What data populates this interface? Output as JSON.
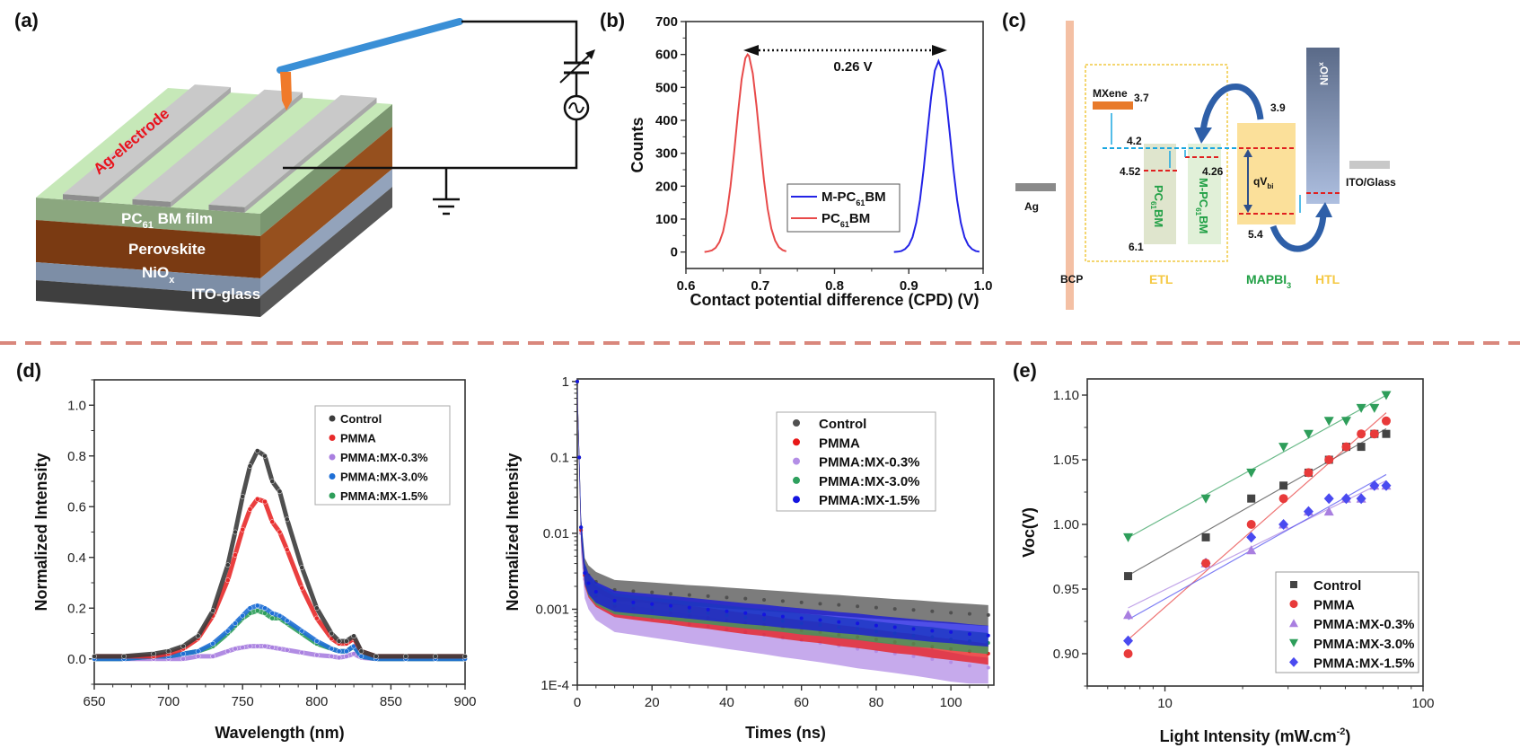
{
  "figure": {
    "panel_labels": {
      "a": "(a)",
      "b": "(b)",
      "c": "(c)",
      "d": "(d)",
      "e": "(e)"
    },
    "separator_color": "#d9877c"
  },
  "panel_a": {
    "electrode_label": "Ag-electrode",
    "layers": [
      {
        "label": "PC",
        "sub": "61",
        "rest": " BM film",
        "top_color": "#c6e8b8",
        "front_color": "#8ba77f",
        "side_color": "#7a9670"
      },
      {
        "label": "Perovskite",
        "sub": "",
        "rest": "",
        "front_color": "#7a3a12",
        "side_color": "#96501e"
      },
      {
        "label": "NiO",
        "sub": "x",
        "rest": "",
        "front_color": "#7d8ea6",
        "side_color": "#93a3bb"
      },
      {
        "label": "ITO-glass",
        "sub": "",
        "rest": "",
        "front_color": "#3f3f3f",
        "side_color": "#575757"
      }
    ],
    "electrode_color": "#c9c9c9",
    "cantilever_color": "#3a8fd6",
    "tip_color": "#f07a2a"
  },
  "panel_c": {
    "mxene": {
      "label": "MXene",
      "level": "3.7"
    },
    "levels": {
      "fermi": "4.2",
      "pcbm_lumo": "4.52",
      "mpcbm_lumo": "4.26",
      "pcbm_homo": "6.1",
      "mapbi_lumo": "3.9",
      "mapbi_homo": "5.4"
    },
    "pcbm": {
      "a": "PC",
      "sub": "61",
      "b": "BM"
    },
    "mpcbm": {
      "a": "M-PC",
      "sub": "61",
      "b": "BM"
    },
    "qvbi": {
      "a": "qV",
      "sub": "bi"
    },
    "nio": {
      "a": "NiO",
      "sub": "x"
    },
    "ag": "Ag",
    "bcp": "BCP",
    "ito": "ITO/Glass",
    "etl": "ETL",
    "mapbi": {
      "a": "MAPBI",
      "sub": "3"
    },
    "htl": "HTL",
    "colors": {
      "etl": "#f5c842",
      "mapbi_text": "#22a046",
      "htl": "#f5c842",
      "red_dash": "#e02020",
      "cyan": "#1aa7e0",
      "arrow": "#2e5fa8"
    }
  },
  "chart_data": [
    {
      "id": "cpd",
      "type": "line",
      "xlabel": "Contact potential difference (CPD) (V)",
      "ylabel": "Counts",
      "xlim": [
        0.6,
        1.0
      ],
      "ylim": [
        -50,
        700
      ],
      "xticks": [
        "0.6",
        "0.7",
        "0.8",
        "0.9",
        "1.0"
      ],
      "yticks": [
        "0",
        "100",
        "200",
        "300",
        "400",
        "500",
        "600",
        "700"
      ],
      "annotation": "0.26 V",
      "legend_position": "lower-right",
      "series": [
        {
          "name": "M-PC",
          "name_sub": "61",
          "name_rest": "BM",
          "color": "#2323e6",
          "x": [
            0.88,
            0.885,
            0.89,
            0.895,
            0.9,
            0.905,
            0.91,
            0.915,
            0.92,
            0.925,
            0.93,
            0.935,
            0.94,
            0.945,
            0.95,
            0.955,
            0.96,
            0.965,
            0.97,
            0.975,
            0.98,
            0.985,
            0.99,
            0.995
          ],
          "y": [
            0,
            1,
            3,
            9,
            21,
            45,
            89,
            158,
            252,
            363,
            470,
            551,
            580,
            551,
            470,
            363,
            252,
            158,
            89,
            45,
            21,
            9,
            3,
            1
          ]
        },
        {
          "name": "PC",
          "name_sub": "61",
          "name_rest": "BM",
          "color": "#e84a4a",
          "x": [
            0.625,
            0.63,
            0.635,
            0.64,
            0.645,
            0.65,
            0.655,
            0.66,
            0.665,
            0.67,
            0.675,
            0.68,
            0.683,
            0.685,
            0.69,
            0.695,
            0.7,
            0.705,
            0.71,
            0.715,
            0.72,
            0.725,
            0.73,
            0.735
          ],
          "y": [
            0,
            2,
            5,
            13,
            30,
            62,
            117,
            200,
            305,
            421,
            525,
            589,
            600,
            595,
            542,
            444,
            329,
            219,
            131,
            71,
            35,
            15,
            6,
            2
          ]
        }
      ]
    },
    {
      "id": "pl",
      "type": "scatter",
      "xlabel": "Wavelength (nm)",
      "ylabel": "Normalized Intensity",
      "xlim": [
        650,
        900
      ],
      "ylim": [
        -0.1,
        1.1
      ],
      "xticks": [
        "650",
        "700",
        "750",
        "800",
        "850",
        "900"
      ],
      "yticks": [
        "0.0",
        "0.2",
        "0.4",
        "0.6",
        "0.8",
        "1.0"
      ],
      "legend_position": "top-right",
      "x": [
        650,
        670,
        690,
        700,
        710,
        720,
        730,
        740,
        745,
        750,
        755,
        760,
        765,
        770,
        775,
        780,
        790,
        800,
        810,
        815,
        820,
        825,
        830,
        840,
        860,
        880,
        900
      ],
      "series": [
        {
          "name": "Control",
          "color": "#3c3c3c",
          "values": [
            0.01,
            0.01,
            0.02,
            0.03,
            0.05,
            0.09,
            0.19,
            0.37,
            0.5,
            0.64,
            0.76,
            0.82,
            0.8,
            0.7,
            0.66,
            0.55,
            0.36,
            0.2,
            0.1,
            0.07,
            0.07,
            0.09,
            0.03,
            0.01,
            0.01,
            0.01,
            0.01
          ]
        },
        {
          "name": "PMMA",
          "color": "#e82a2a",
          "values": [
            0.01,
            0.01,
            0.01,
            0.02,
            0.04,
            0.08,
            0.17,
            0.31,
            0.41,
            0.51,
            0.59,
            0.63,
            0.62,
            0.54,
            0.5,
            0.43,
            0.28,
            0.16,
            0.08,
            0.06,
            0.06,
            0.08,
            0.03,
            0.01,
            0.01,
            0.01,
            0.01
          ]
        },
        {
          "name": "PMMA:MX-0.3%",
          "color": "#a97fe0",
          "values": [
            0,
            0,
            0,
            0,
            0,
            0.01,
            0.01,
            0.03,
            0.04,
            0.045,
            0.05,
            0.05,
            0.05,
            0.045,
            0.04,
            0.035,
            0.025,
            0.015,
            0.01,
            0.005,
            0.01,
            0.02,
            0.005,
            0,
            0,
            0,
            0
          ]
        },
        {
          "name": "PMMA:MX-3.0%",
          "color": "#1f6fd6",
          "values": [
            0,
            0,
            0.01,
            0.01,
            0.02,
            0.03,
            0.06,
            0.11,
            0.14,
            0.17,
            0.2,
            0.21,
            0.2,
            0.18,
            0.17,
            0.15,
            0.11,
            0.07,
            0.04,
            0.03,
            0.03,
            0.05,
            0.01,
            0,
            0,
            0,
            0
          ]
        },
        {
          "name": "PMMA:MX-1.5%",
          "color": "#2e9e5a",
          "values": [
            0,
            0,
            0.01,
            0.01,
            0.02,
            0.03,
            0.05,
            0.1,
            0.13,
            0.16,
            0.18,
            0.19,
            0.18,
            0.16,
            0.16,
            0.14,
            0.1,
            0.06,
            0.04,
            0.03,
            0.03,
            0.05,
            0.01,
            0,
            0,
            0,
            0
          ]
        }
      ]
    },
    {
      "id": "trpl",
      "type": "scatter",
      "xlabel": "Times (ns)",
      "ylabel": "Normalized Intensity",
      "xlim": [
        0,
        111.5
      ],
      "ylim": [
        0.0001,
        1.08
      ],
      "yscale": "log",
      "xticks": [
        "0",
        "20",
        "40",
        "60",
        "80",
        "100"
      ],
      "yticks": [
        "1E-4",
        "0.001",
        "0.01",
        "0.1",
        "1"
      ],
      "legend_position": "top-right",
      "x": [
        0,
        0.5,
        1,
        2,
        3,
        5,
        10,
        15,
        20,
        25,
        30,
        35,
        40,
        45,
        50,
        55,
        60,
        65,
        70,
        75,
        80,
        85,
        90,
        95,
        100,
        105,
        110
      ],
      "series": [
        {
          "name": "Control",
          "color": "#505050",
          "values": [
            1,
            0.1,
            0.012,
            0.0035,
            0.0028,
            0.0023,
            0.0018,
            0.00173,
            0.00167,
            0.0016,
            0.00154,
            0.00149,
            0.00143,
            0.00138,
            0.00133,
            0.00128,
            0.00123,
            0.00118,
            0.00114,
            0.00109,
            0.00105,
            0.00101,
            0.00098,
            0.00094,
            0.0009,
            0.00087,
            0.00084
          ]
        },
        {
          "name": "PMMA",
          "color": "#e81818",
          "values": [
            1,
            0.1,
            0.011,
            0.0028,
            0.002,
            0.0015,
            0.0011,
            0.00102,
            0.00095,
            0.00089,
            0.00082,
            0.00077,
            0.00071,
            0.00066,
            0.00062,
            0.00057,
            0.00053,
            0.0005,
            0.00046,
            0.00043,
            0.0004,
            0.00037,
            0.00035,
            0.00032,
            0.0003,
            0.00028,
            0.00026
          ]
        },
        {
          "name": "PMMA:MX-0.3%",
          "color": "#b38ee6",
          "values": [
            1,
            0.1,
            0.01,
            0.0025,
            0.0018,
            0.0013,
            0.0009,
            0.00083,
            0.00076,
            0.0007,
            0.00064,
            0.00059,
            0.00054,
            0.0005,
            0.00046,
            0.00042,
            0.00039,
            0.00036,
            0.00033,
            0.0003,
            0.00028,
            0.00026,
            0.00024,
            0.00022,
            0.0002,
            0.00018,
            0.00017
          ]
        },
        {
          "name": "PMMA:MX-3.0%",
          "color": "#2ea05e",
          "values": [
            1,
            0.1,
            0.012,
            0.003,
            0.0021,
            0.0016,
            0.0012,
            0.00113,
            0.00106,
            0.001,
            0.00094,
            0.00089,
            0.00083,
            0.00078,
            0.00074,
            0.0007,
            0.00065,
            0.00062,
            0.00058,
            0.00055,
            0.00051,
            0.00048,
            0.00045,
            0.00043,
            0.0004,
            0.00038,
            0.00036
          ]
        },
        {
          "name": "PMMA:MX-1.5%",
          "color": "#1414e0",
          "values": [
            1,
            0.1,
            0.012,
            0.003,
            0.0022,
            0.0017,
            0.0013,
            0.00123,
            0.00117,
            0.00111,
            0.00105,
            0.00099,
            0.00094,
            0.00089,
            0.00085,
            0.0008,
            0.00076,
            0.00072,
            0.00068,
            0.00065,
            0.00061,
            0.00058,
            0.00055,
            0.00052,
            0.0005,
            0.00047,
            0.00045
          ]
        }
      ]
    },
    {
      "id": "voc",
      "type": "scatter",
      "xlabel": "Light Intensity (mW.cm",
      "xlabel_sup": "-2",
      "xlabel_end": ")",
      "ylabel": "Voc(V)",
      "xlim": [
        5,
        100
      ],
      "xscale": "log",
      "ylim": [
        0.875,
        1.1125
      ],
      "xticks": [
        "10",
        "100"
      ],
      "yticks": [
        "0.90",
        "0.95",
        "1.00",
        "1.05",
        "1.10"
      ],
      "legend_position": "lower-right",
      "x": [
        7.2,
        14.4,
        21.6,
        28.8,
        36,
        43.2,
        50.4,
        57.6,
        64.8,
        72
      ],
      "series": [
        {
          "name": "Control",
          "color": "#444444",
          "marker": "square",
          "values": [
            0.96,
            0.99,
            1.02,
            1.03,
            1.04,
            1.05,
            1.06,
            1.06,
            1.07,
            1.07
          ]
        },
        {
          "name": "PMMA",
          "color": "#e83a3a",
          "marker": "circle",
          "values": [
            0.9,
            0.97,
            1.0,
            1.02,
            1.04,
            1.05,
            1.06,
            1.07,
            1.07,
            1.08
          ]
        },
        {
          "name": "PMMA:MX-0.3%",
          "color": "#a97fe0",
          "marker": "triangle-up",
          "values": [
            0.93,
            0.97,
            0.98,
            1.0,
            1.01,
            1.01,
            1.02,
            1.02,
            1.03,
            1.03
          ]
        },
        {
          "name": "PMMA:MX-3.0%",
          "color": "#2e9e5a",
          "marker": "triangle-down",
          "values": [
            0.99,
            1.02,
            1.04,
            1.06,
            1.07,
            1.08,
            1.08,
            1.09,
            1.09,
            1.1
          ]
        },
        {
          "name": "PMMA:MX-1.5%",
          "color": "#4a4af0",
          "marker": "diamond",
          "values": [
            0.91,
            0.97,
            0.99,
            1.0,
            1.01,
            1.02,
            1.02,
            1.02,
            1.03,
            1.03
          ]
        }
      ]
    }
  ]
}
